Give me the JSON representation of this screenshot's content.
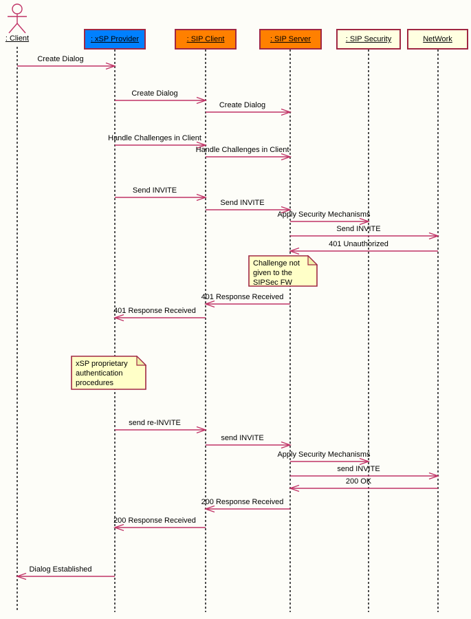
{
  "diagram": {
    "kind": "uml-sequence-diagram",
    "subject": "SIP dialog establishment with xSP provider authentication"
  },
  "colors": {
    "message_line": "#C03366",
    "box_border": "#A02742",
    "provider_blue": "#0080FF",
    "sip_orange": "#FF8000",
    "cream_yellow": "#FFFFE1",
    "note_yellow": "#FFFFC8",
    "note_fold": "#EFEFA8",
    "lifeline_gray": "#4D4D4D",
    "background": "#FDFDF8",
    "text": "#000000"
  },
  "participants": [
    {
      "id": "client",
      "label": ": Client",
      "kind": "actor",
      "fill": ""
    },
    {
      "id": "xsp-provider",
      "label": ": xSP Provider",
      "kind": "object",
      "fill": "#0080FF"
    },
    {
      "id": "sip-client",
      "label": ": SIP Client",
      "kind": "object",
      "fill": "#FF8000"
    },
    {
      "id": "sip-server",
      "label": ": SIP Server",
      "kind": "object",
      "fill": "#FF8000"
    },
    {
      "id": "sip-security",
      "label": ": SIP Security",
      "kind": "object",
      "fill": "#FFFFE1"
    },
    {
      "id": "network",
      "label": "NetWork",
      "kind": "object",
      "fill": "#FFFFE1"
    }
  ],
  "messages": [
    {
      "from": "client",
      "to": "xsp-provider",
      "label": "Create Dialog"
    },
    {
      "from": "xsp-provider",
      "to": "sip-client",
      "label": "Create Dialog"
    },
    {
      "from": "sip-client",
      "to": "sip-server",
      "label": "Create Dialog"
    },
    {
      "from": "xsp-provider",
      "to": "sip-client",
      "label": "Handle Challenges in Client"
    },
    {
      "from": "sip-client",
      "to": "sip-server",
      "label": "Handle Challenges in Client"
    },
    {
      "from": "xsp-provider",
      "to": "sip-client",
      "label": "Send INVITE"
    },
    {
      "from": "sip-client",
      "to": "sip-server",
      "label": "Send INVITE"
    },
    {
      "from": "sip-server",
      "to": "sip-security",
      "label": "Apply Security Mechanisms"
    },
    {
      "from": "sip-server",
      "to": "network",
      "label": "Send INVITE"
    },
    {
      "from": "network",
      "to": "sip-server",
      "label": "401 Unauthorized"
    },
    {
      "from": "sip-server",
      "to": "sip-client",
      "label": "401 Response Received"
    },
    {
      "from": "sip-client",
      "to": "xsp-provider",
      "label": "401 Response Received"
    },
    {
      "from": "xsp-provider",
      "to": "sip-client",
      "label": "send re-INVITE"
    },
    {
      "from": "sip-client",
      "to": "sip-server",
      "label": "send INVITE"
    },
    {
      "from": "sip-server",
      "to": "sip-security",
      "label": "Apply Security Mechanisms"
    },
    {
      "from": "sip-server",
      "to": "network",
      "label": "send INVITE"
    },
    {
      "from": "network",
      "to": "sip-server",
      "label": "200 OK"
    },
    {
      "from": "sip-server",
      "to": "sip-client",
      "label": "200 Response Received"
    },
    {
      "from": "sip-client",
      "to": "xsp-provider",
      "label": "200 Response Received"
    },
    {
      "from": "xsp-provider",
      "to": "client",
      "label": "Dialog Established"
    }
  ],
  "notes": [
    {
      "text": "Challenge not given to the SIPSec FW",
      "lines": [
        "Challenge not",
        "given to the",
        "SIPSec FW"
      ]
    },
    {
      "text": "xSP proprietary authentication procedures",
      "lines": [
        "xSP proprietary",
        "authentication",
        "procedures"
      ]
    }
  ]
}
